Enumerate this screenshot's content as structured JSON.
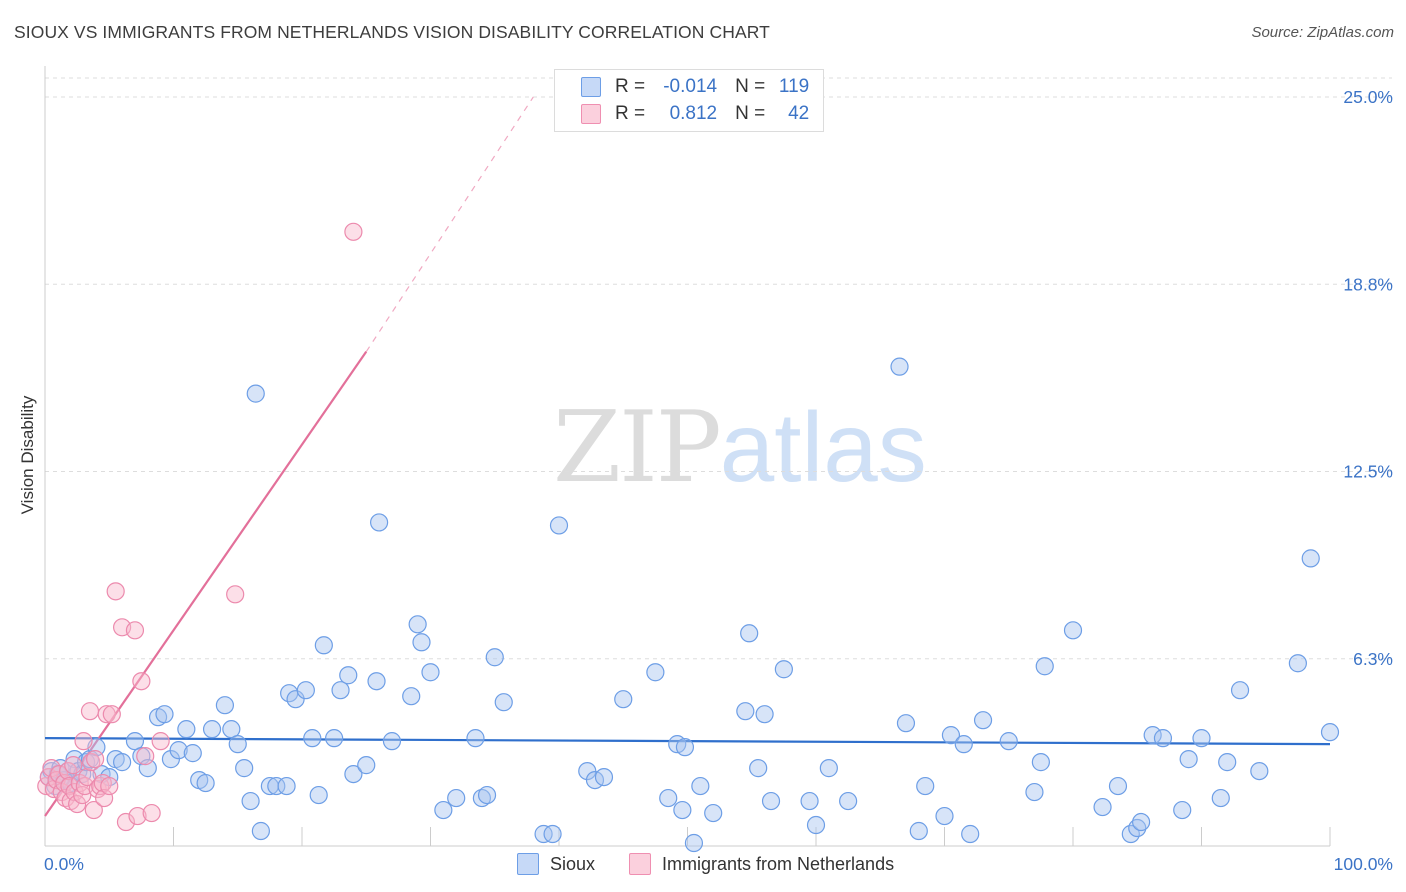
{
  "header": {
    "title": "SIOUX VS IMMIGRANTS FROM NETHERLANDS VISION DISABILITY CORRELATION CHART",
    "source": "Source: ZipAtlas.com"
  },
  "legend": {
    "r_label": "R =",
    "n_label": "N =",
    "series1": {
      "r": "-0.014",
      "n": "119"
    },
    "series2": {
      "r": "0.812",
      "n": "42"
    }
  },
  "watermark": {
    "zip": "ZIP",
    "atlas": "atlas"
  },
  "chart_data": {
    "type": "scatter",
    "title": "SIOUX VS IMMIGRANTS FROM NETHERLANDS VISION DISABILITY CORRELATION CHART",
    "xlabel": "",
    "ylabel": "Vision Disability",
    "xlim": [
      0,
      100
    ],
    "ylim": [
      0,
      25
    ],
    "x_tick_labels": [
      "0.0%",
      "100.0%"
    ],
    "y_ticks": [
      {
        "value": 6.25,
        "label": "6.3%"
      },
      {
        "value": 12.5,
        "label": "12.5%"
      },
      {
        "value": 18.75,
        "label": "18.8%"
      },
      {
        "value": 25.0,
        "label": "25.0%"
      }
    ],
    "grid": true,
    "colors": {
      "blue_fill": "#a7c4f0",
      "blue_stroke": "#6d9ee6",
      "blue_line": "#2f6fcc",
      "pink_fill": "#f8b9cc",
      "pink_stroke": "#ec8aad",
      "pink_line": "#e3709a",
      "tick_text": "#3b73c6",
      "grid": "#dddddd"
    },
    "series": [
      {
        "name": "Sioux",
        "r": -0.014,
        "n": 119,
        "trend": {
          "x": [
            0,
            100
          ],
          "y": [
            3.6,
            3.4
          ]
        },
        "points": [
          [
            0.3,
            2.3
          ],
          [
            0.5,
            2.5
          ],
          [
            0.8,
            2.0
          ],
          [
            1.0,
            2.4
          ],
          [
            1.2,
            2.6
          ],
          [
            1.5,
            2.2
          ],
          [
            1.8,
            2.5
          ],
          [
            2.0,
            2.1
          ],
          [
            2.3,
            2.9
          ],
          [
            2.6,
            2.5
          ],
          [
            2.9,
            2.4
          ],
          [
            3.2,
            2.8
          ],
          [
            3.5,
            2.9
          ],
          [
            4.0,
            3.3
          ],
          [
            4.4,
            2.4
          ],
          [
            5.0,
            2.3
          ],
          [
            5.5,
            2.9
          ],
          [
            6.0,
            2.8
          ],
          [
            7.0,
            3.5
          ],
          [
            7.5,
            3.0
          ],
          [
            8.0,
            2.6
          ],
          [
            8.8,
            4.3
          ],
          [
            9.3,
            4.4
          ],
          [
            9.8,
            2.9
          ],
          [
            10.4,
            3.2
          ],
          [
            11.0,
            3.9
          ],
          [
            11.5,
            3.1
          ],
          [
            12.0,
            2.2
          ],
          [
            12.5,
            2.1
          ],
          [
            13.0,
            3.9
          ],
          [
            14.0,
            4.7
          ],
          [
            14.5,
            3.9
          ],
          [
            15.0,
            3.4
          ],
          [
            15.5,
            2.6
          ],
          [
            16.0,
            1.5
          ],
          [
            16.4,
            15.1
          ],
          [
            16.8,
            0.5
          ],
          [
            17.5,
            2.0
          ],
          [
            18.0,
            2.0
          ],
          [
            18.8,
            2.0
          ],
          [
            19.0,
            5.1
          ],
          [
            19.5,
            4.9
          ],
          [
            20.3,
            5.2
          ],
          [
            20.8,
            3.6
          ],
          [
            21.3,
            1.7
          ],
          [
            21.7,
            6.7
          ],
          [
            22.5,
            3.6
          ],
          [
            23.0,
            5.2
          ],
          [
            23.6,
            5.7
          ],
          [
            24.0,
            2.4
          ],
          [
            25.0,
            2.7
          ],
          [
            25.8,
            5.5
          ],
          [
            26.0,
            10.8
          ],
          [
            27.0,
            3.5
          ],
          [
            28.5,
            5.0
          ],
          [
            29.0,
            7.4
          ],
          [
            29.3,
            6.8
          ],
          [
            30.0,
            5.8
          ],
          [
            31.0,
            1.2
          ],
          [
            32.0,
            1.6
          ],
          [
            33.5,
            3.6
          ],
          [
            34.0,
            1.6
          ],
          [
            34.4,
            1.7
          ],
          [
            35.0,
            6.3
          ],
          [
            35.7,
            4.8
          ],
          [
            38.8,
            0.4
          ],
          [
            39.5,
            0.4
          ],
          [
            40.0,
            10.7
          ],
          [
            42.2,
            2.5
          ],
          [
            42.8,
            2.2
          ],
          [
            43.5,
            2.3
          ],
          [
            45.0,
            4.9
          ],
          [
            47.5,
            5.8
          ],
          [
            48.5,
            1.6
          ],
          [
            49.2,
            3.4
          ],
          [
            49.6,
            1.2
          ],
          [
            49.8,
            3.3
          ],
          [
            50.5,
            0.1
          ],
          [
            51.0,
            2.0
          ],
          [
            52.0,
            1.1
          ],
          [
            54.5,
            4.5
          ],
          [
            54.8,
            7.1
          ],
          [
            55.5,
            2.6
          ],
          [
            56.0,
            4.4
          ],
          [
            56.5,
            1.5
          ],
          [
            57.5,
            5.9
          ],
          [
            59.5,
            1.5
          ],
          [
            60.0,
            0.7
          ],
          [
            61.0,
            2.6
          ],
          [
            62.5,
            1.5
          ],
          [
            66.5,
            16.0
          ],
          [
            67.0,
            4.1
          ],
          [
            68.0,
            0.5
          ],
          [
            68.5,
            2.0
          ],
          [
            70.0,
            1.0
          ],
          [
            70.5,
            3.7
          ],
          [
            71.5,
            3.4
          ],
          [
            72.0,
            0.4
          ],
          [
            73.0,
            4.2
          ],
          [
            75.0,
            3.5
          ],
          [
            77.0,
            1.8
          ],
          [
            77.5,
            2.8
          ],
          [
            77.8,
            6.0
          ],
          [
            80.0,
            7.2
          ],
          [
            82.3,
            1.3
          ],
          [
            83.5,
            2.0
          ],
          [
            84.5,
            0.4
          ],
          [
            85.0,
            0.6
          ],
          [
            85.3,
            0.8
          ],
          [
            86.2,
            3.7
          ],
          [
            87.0,
            3.6
          ],
          [
            88.5,
            1.2
          ],
          [
            89.0,
            2.9
          ],
          [
            90.0,
            3.6
          ],
          [
            91.5,
            1.6
          ],
          [
            92.0,
            2.8
          ],
          [
            93.0,
            5.2
          ],
          [
            94.5,
            2.5
          ],
          [
            97.5,
            6.1
          ],
          [
            98.5,
            9.6
          ],
          [
            100.0,
            3.8
          ]
        ]
      },
      {
        "name": "Immigrants from Netherlands",
        "r": 0.812,
        "n": 42,
        "trend": {
          "x": [
            0,
            25.0
          ],
          "y": [
            1.0,
            16.5
          ]
        },
        "trend_dashed": {
          "x": [
            25.0,
            38.0
          ],
          "y": [
            16.5,
            25.0
          ]
        },
        "points": [
          [
            0.1,
            2.0
          ],
          [
            0.3,
            2.3
          ],
          [
            0.5,
            2.6
          ],
          [
            0.7,
            1.9
          ],
          [
            0.9,
            2.2
          ],
          [
            1.1,
            2.4
          ],
          [
            1.3,
            1.8
          ],
          [
            1.5,
            2.1
          ],
          [
            1.6,
            1.6
          ],
          [
            1.8,
            2.5
          ],
          [
            1.9,
            2.0
          ],
          [
            2.0,
            1.5
          ],
          [
            2.2,
            2.7
          ],
          [
            2.3,
            1.8
          ],
          [
            2.5,
            1.4
          ],
          [
            2.7,
            2.1
          ],
          [
            2.9,
            1.7
          ],
          [
            3.0,
            3.5
          ],
          [
            3.1,
            2.0
          ],
          [
            3.3,
            2.3
          ],
          [
            3.5,
            4.5
          ],
          [
            3.6,
            2.8
          ],
          [
            3.8,
            1.2
          ],
          [
            3.9,
            2.9
          ],
          [
            4.1,
            1.9
          ],
          [
            4.3,
            2.0
          ],
          [
            4.5,
            2.1
          ],
          [
            4.6,
            1.6
          ],
          [
            4.8,
            4.4
          ],
          [
            5.0,
            2.0
          ],
          [
            5.2,
            4.4
          ],
          [
            5.5,
            8.5
          ],
          [
            6.0,
            7.3
          ],
          [
            6.3,
            0.8
          ],
          [
            7.0,
            7.2
          ],
          [
            7.2,
            1.0
          ],
          [
            7.5,
            5.5
          ],
          [
            7.8,
            3.0
          ],
          [
            8.3,
            1.1
          ],
          [
            9.0,
            3.5
          ],
          [
            14.8,
            8.4
          ],
          [
            24.0,
            20.5
          ]
        ]
      }
    ]
  }
}
